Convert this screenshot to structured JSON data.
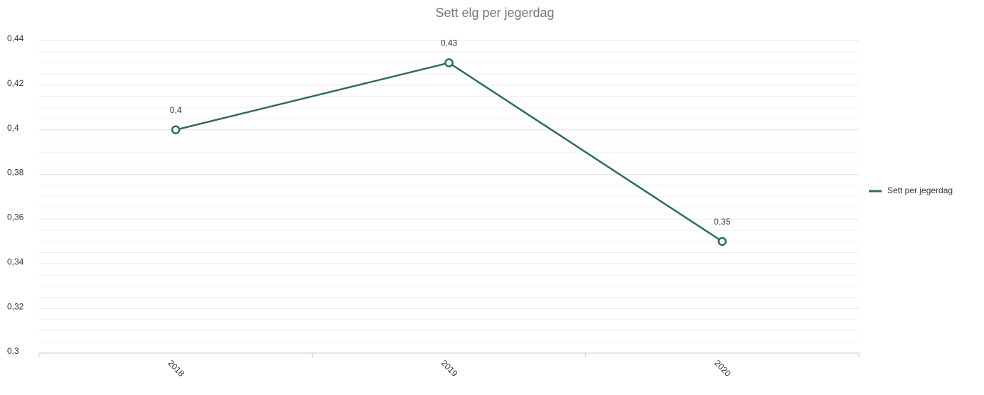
{
  "chart_data": {
    "type": "line",
    "title": "Sett elg per jegerdag",
    "categories": [
      "2018",
      "2019",
      "2020"
    ],
    "series": [
      {
        "name": "Sett per jegerdag",
        "color": "#2e6b62",
        "values": [
          0.4,
          0.43,
          0.35
        ],
        "value_labels": [
          "0,4",
          "0,43",
          "0,35"
        ]
      }
    ],
    "ylim": [
      0.3,
      0.44
    ],
    "yticks": [
      {
        "value": 0.3,
        "label": "0,3"
      },
      {
        "value": 0.32,
        "label": "0,32"
      },
      {
        "value": 0.34,
        "label": "0,34"
      },
      {
        "value": 0.36,
        "label": "0,36"
      },
      {
        "value": 0.38,
        "label": "0,38"
      },
      {
        "value": 0.4,
        "label": "0,4"
      },
      {
        "value": 0.42,
        "label": "0,42"
      },
      {
        "value": 0.44,
        "label": "0,44"
      }
    ],
    "yminorticks": [
      0.305,
      0.31,
      0.315,
      0.325,
      0.33,
      0.335,
      0.345,
      0.35,
      0.355,
      0.365,
      0.37,
      0.375,
      0.385,
      0.39,
      0.395,
      0.405,
      0.41,
      0.415,
      0.425,
      0.43,
      0.435
    ],
    "grid": true,
    "legend": "right"
  }
}
